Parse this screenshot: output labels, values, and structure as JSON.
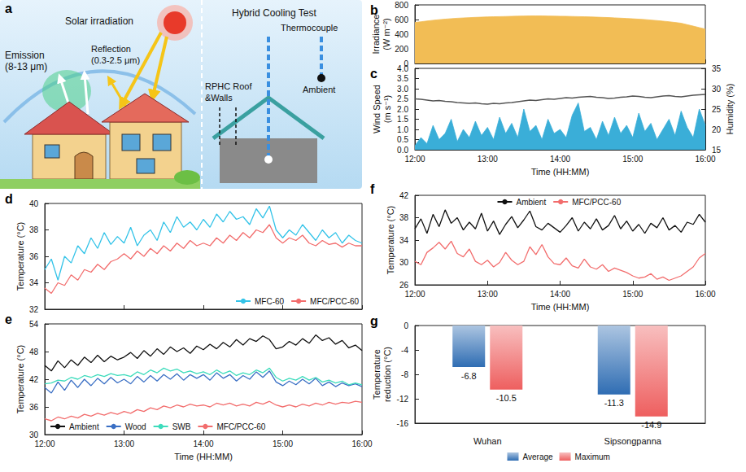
{
  "diagram": {
    "panel": "a",
    "solar": "Solar irradiation",
    "emission_lines": [
      "Emission",
      "(8-13 μm)"
    ],
    "reflection_lines": [
      "Reflection",
      "(0.3-2.5 μm)"
    ],
    "test_title": "Hybrid Cooling Test",
    "thermocouple": "Thermocouple",
    "sample_lines": [
      "RPHC Roof",
      "&Walls"
    ],
    "ambient": "Ambient"
  },
  "chart_data": [
    {
      "panel": "b",
      "type": "area",
      "ylabel": "Irradiance (W m⁻²)",
      "ylim": [
        0,
        800
      ],
      "yticks": [
        0,
        200,
        400,
        600,
        800
      ],
      "grid": false,
      "tick_labels": "y",
      "color": "#f2bd55",
      "categories": [
        "12:00",
        null,
        null,
        null,
        null,
        null,
        null,
        null,
        null,
        null,
        null,
        null,
        "13:00",
        null,
        null,
        null,
        null,
        null,
        null,
        null,
        null,
        null,
        null,
        null,
        "14:00",
        null,
        null,
        null,
        null,
        null,
        null,
        null,
        null,
        null,
        null,
        null,
        "15:00",
        null,
        null,
        null,
        null,
        null,
        null,
        null,
        null,
        null,
        null,
        null,
        "16:00"
      ],
      "values": [
        560,
        570,
        580,
        590,
        598,
        605,
        612,
        618,
        622,
        626,
        630,
        633,
        636,
        638,
        640,
        642,
        644,
        646,
        648,
        650,
        650,
        650,
        648,
        646,
        645,
        644,
        642,
        640,
        638,
        636,
        633,
        630,
        627,
        623,
        619,
        615,
        610,
        605,
        600,
        593,
        586,
        578,
        570,
        560,
        550,
        530,
        510,
        490,
        470
      ]
    },
    {
      "panel": "c",
      "type": "line",
      "xlabel": "Time (HH:MM)",
      "ylabel": "Wind Speed (m s⁻¹)",
      "y2label": "Humidity (%)",
      "ylim": [
        0,
        4
      ],
      "yticks": [
        {
          "value": 0,
          "label": "0.0"
        },
        0.5,
        {
          "value": 1,
          "label": "1.0"
        },
        1.5,
        {
          "value": 2,
          "label": "2.0"
        },
        2.5,
        {
          "value": 3,
          "label": "3.0"
        },
        3.5,
        {
          "value": 4,
          "label": "4.0"
        }
      ],
      "y2lim": [
        15,
        35
      ],
      "y2ticks": [
        15,
        20,
        25,
        30,
        35
      ],
      "grid": false,
      "categories": [
        "12:00",
        null,
        null,
        null,
        null,
        null,
        null,
        null,
        null,
        null,
        null,
        null,
        "13:00",
        null,
        null,
        null,
        null,
        null,
        null,
        null,
        null,
        null,
        null,
        null,
        "14:00",
        null,
        null,
        null,
        null,
        null,
        null,
        null,
        null,
        null,
        null,
        null,
        "15:00",
        null,
        null,
        null,
        null,
        null,
        null,
        null,
        null,
        null,
        null,
        null,
        "16:00"
      ],
      "series": [
        {
          "type": "area",
          "color": "#3aaed8",
          "values": [
            0.2,
            0.6,
            0.3,
            1.2,
            0.5,
            0.8,
            1.5,
            0.4,
            1.0,
            0.6,
            1.4,
            0.7,
            1.1,
            0.5,
            1.6,
            0.8,
            1.3,
            0.6,
            2.0,
            0.9,
            1.2,
            0.5,
            1.5,
            0.8,
            1.0,
            0.6,
            1.7,
            2.3,
            0.9,
            1.1,
            0.5,
            1.4,
            0.7,
            1.6,
            0.8,
            1.2,
            0.6,
            1.8,
            0.9,
            1.3,
            0.5,
            1.0,
            1.5,
            0.7,
            1.9,
            1.1,
            0.6,
            2.0,
            1.2
          ]
        },
        {
          "type": "line",
          "color": "#555555",
          "axis": "y2",
          "values": [
            27.5,
            27.4,
            27.2,
            27.0,
            27.1,
            26.9,
            26.8,
            26.6,
            26.5,
            26.4,
            26.5,
            26.3,
            26.2,
            26.4,
            26.3,
            26.5,
            26.6,
            26.8,
            27.0,
            27.2,
            27.1,
            27.3,
            27.5,
            27.4,
            27.6,
            27.8,
            27.7,
            27.9,
            28.0,
            28.1,
            27.9,
            27.8,
            27.6,
            27.7,
            27.9,
            28.0,
            28.2,
            28.1,
            27.9,
            27.8,
            28.0,
            28.2,
            28.3,
            28.1,
            28.0,
            28.2,
            28.4,
            28.5,
            28.6
          ]
        }
      ]
    },
    {
      "panel": "d",
      "type": "line",
      "ylabel": "Temperature (°C)",
      "ylim": [
        32,
        40
      ],
      "yticks": [
        32,
        34,
        36,
        38,
        40
      ],
      "grid": false,
      "tick_labels": "y",
      "legend": "lower right",
      "categories": [
        "12:00",
        null,
        null,
        null,
        null,
        null,
        null,
        null,
        null,
        null,
        null,
        null,
        "13:00",
        null,
        null,
        null,
        null,
        null,
        null,
        null,
        null,
        null,
        null,
        null,
        "14:00",
        null,
        null,
        null,
        null,
        null,
        null,
        null,
        null,
        null,
        null,
        null,
        "15:00",
        null,
        null,
        null,
        null,
        null,
        null,
        null,
        null,
        null,
        null,
        null,
        "16:00"
      ],
      "series": [
        {
          "name": "MFC-60",
          "color": "#33c3e8",
          "values": [
            35.0,
            35.8,
            34.2,
            36.0,
            35.5,
            36.8,
            36.2,
            37.4,
            36.6,
            37.8,
            36.9,
            37.5,
            37.0,
            38.2,
            36.8,
            37.6,
            38.0,
            37.2,
            38.6,
            37.8,
            39.0,
            38.2,
            38.6,
            38.0,
            38.8,
            38.2,
            39.2,
            38.6,
            39.4,
            38.8,
            39.0,
            38.4,
            39.6,
            38.9,
            39.8,
            38.0,
            37.4,
            38.0,
            37.6,
            38.4,
            37.8,
            37.2,
            38.0,
            37.4,
            37.8,
            37.0,
            37.6,
            37.2,
            37.0
          ]
        },
        {
          "name": "MFC/PCC-60",
          "color": "#f26d6d",
          "values": [
            33.6,
            33.2,
            34.0,
            33.8,
            34.6,
            34.2,
            35.0,
            34.8,
            35.4,
            35.0,
            35.6,
            35.8,
            36.2,
            35.8,
            36.4,
            36.0,
            36.6,
            36.2,
            36.8,
            36.4,
            37.0,
            36.6,
            37.2,
            36.8,
            37.0,
            36.8,
            37.4,
            37.0,
            37.6,
            37.2,
            37.8,
            37.4,
            38.0,
            37.8,
            38.4,
            37.4,
            37.0,
            37.4,
            37.2,
            37.6,
            37.0,
            36.8,
            37.2,
            36.9,
            37.0,
            36.7,
            37.0,
            36.8,
            36.8
          ]
        }
      ]
    },
    {
      "panel": "e",
      "type": "line",
      "xlabel": "Time (HH:MM)",
      "ylabel": "Temperature (°C)",
      "ylim": [
        30,
        54
      ],
      "yticks": [
        30,
        36,
        42,
        48,
        54
      ],
      "grid": false,
      "legend": "lower left",
      "categories": [
        "12:00",
        null,
        null,
        null,
        null,
        null,
        null,
        null,
        null,
        null,
        null,
        null,
        "13:00",
        null,
        null,
        null,
        null,
        null,
        null,
        null,
        null,
        null,
        null,
        null,
        "14:00",
        null,
        null,
        null,
        null,
        null,
        null,
        null,
        null,
        null,
        null,
        null,
        "15:00",
        null,
        null,
        null,
        null,
        null,
        null,
        null,
        null,
        null,
        null,
        null,
        "16:00"
      ],
      "series": [
        {
          "name": "Ambient",
          "color": "#111111",
          "values": [
            45.0,
            43.8,
            46.0,
            44.5,
            46.2,
            45.0,
            46.8,
            45.6,
            47.2,
            45.8,
            47.0,
            46.2,
            46.8,
            47.8,
            46.5,
            48.2,
            47.0,
            48.6,
            47.4,
            49.0,
            48.0,
            48.8,
            47.6,
            49.2,
            48.4,
            49.6,
            48.6,
            50.0,
            49.0,
            50.6,
            49.4,
            50.8,
            50.2,
            51.4,
            50.6,
            48.6,
            49.0,
            50.2,
            49.4,
            50.8,
            49.8,
            51.6,
            50.4,
            51.0,
            49.6,
            50.4,
            48.8,
            49.4,
            48.2
          ]
        },
        {
          "name": "Wood",
          "color": "#3a6fc4",
          "values": [
            40.2,
            39.0,
            41.4,
            39.6,
            41.8,
            40.2,
            42.0,
            40.6,
            42.2,
            41.0,
            42.4,
            41.2,
            42.0,
            41.0,
            42.6,
            41.4,
            42.8,
            41.6,
            43.0,
            42.0,
            43.2,
            41.8,
            43.0,
            42.2,
            43.0,
            41.8,
            43.4,
            42.2,
            43.0,
            41.6,
            42.8,
            42.0,
            43.6,
            42.4,
            43.8,
            41.4,
            40.6,
            41.6,
            40.8,
            42.0,
            41.0,
            42.2,
            40.6,
            41.4,
            40.4,
            41.2,
            40.6,
            41.0,
            40.4
          ]
        },
        {
          "name": "SWB",
          "color": "#3ddcbc",
          "values": [
            41.0,
            41.2,
            41.8,
            41.6,
            42.4,
            42.0,
            42.8,
            42.4,
            43.0,
            42.6,
            43.2,
            42.8,
            43.0,
            42.6,
            43.6,
            43.0,
            44.0,
            43.4,
            44.4,
            43.8,
            44.2,
            43.4,
            43.8,
            43.2,
            43.6,
            43.0,
            44.0,
            43.2,
            43.8,
            42.8,
            43.4,
            43.0,
            44.0,
            43.4,
            44.4,
            42.4,
            41.6,
            42.2,
            41.8,
            42.6,
            41.8,
            42.4,
            41.4,
            41.8,
            41.2,
            41.6,
            40.8,
            41.2,
            40.8
          ]
        },
        {
          "name": "MFC/PCC-60",
          "color": "#f26d6d",
          "values": [
            33.4,
            33.0,
            33.8,
            33.4,
            34.0,
            33.6,
            34.4,
            34.0,
            34.6,
            34.2,
            34.8,
            34.4,
            35.0,
            34.6,
            35.4,
            35.0,
            35.8,
            35.4,
            36.2,
            35.8,
            36.4,
            36.0,
            36.6,
            36.2,
            36.4,
            36.0,
            36.8,
            36.4,
            36.8,
            36.2,
            36.6,
            36.2,
            37.0,
            36.6,
            37.2,
            36.4,
            36.0,
            36.4,
            36.0,
            36.6,
            36.2,
            36.8,
            36.4,
            37.0,
            36.6,
            37.0,
            36.8,
            37.2,
            37.0
          ]
        }
      ]
    },
    {
      "panel": "f",
      "type": "line",
      "xlabel": "Time (HH:MM)",
      "ylabel": "Temperature (°C)",
      "ylim": [
        26,
        42
      ],
      "yticks": [
        26,
        30,
        34,
        38,
        42
      ],
      "grid": false,
      "legend": "top",
      "categories": [
        "12:00",
        null,
        null,
        null,
        null,
        null,
        null,
        null,
        null,
        null,
        null,
        null,
        "13:00",
        null,
        null,
        null,
        null,
        null,
        null,
        null,
        null,
        null,
        null,
        null,
        "14:00",
        null,
        null,
        null,
        null,
        null,
        null,
        null,
        null,
        null,
        null,
        null,
        "15:00",
        null,
        null,
        null,
        null,
        null,
        null,
        null,
        null,
        null,
        null,
        null,
        "16:00"
      ],
      "series": [
        {
          "name": "Ambient",
          "color": "#111111",
          "values": [
            36.0,
            37.8,
            35.2,
            38.6,
            36.4,
            39.4,
            37.0,
            38.0,
            35.8,
            37.2,
            36.0,
            38.8,
            35.6,
            37.4,
            35.0,
            36.8,
            38.2,
            36.2,
            37.6,
            39.2,
            36.4,
            35.8,
            37.0,
            36.2,
            35.4,
            36.6,
            38.0,
            35.6,
            37.2,
            36.0,
            37.8,
            35.8,
            36.6,
            38.4,
            36.0,
            37.4,
            35.6,
            36.8,
            35.2,
            37.0,
            36.2,
            38.0,
            35.8,
            36.6,
            35.4,
            37.2,
            36.8,
            38.6,
            37.2
          ]
        },
        {
          "name": "MFC/PCC-60",
          "color": "#f26d6d",
          "values": [
            30.2,
            29.6,
            31.8,
            32.6,
            33.6,
            32.4,
            33.8,
            31.6,
            31.0,
            32.4,
            30.2,
            29.6,
            30.4,
            29.2,
            30.0,
            31.8,
            30.4,
            29.6,
            30.2,
            32.8,
            31.4,
            33.2,
            31.0,
            29.8,
            29.6,
            30.8,
            29.4,
            29.0,
            30.6,
            29.2,
            28.8,
            29.6,
            28.4,
            29.0,
            28.6,
            28.2,
            27.6,
            27.2,
            27.4,
            28.0,
            27.0,
            27.4,
            26.8,
            27.2,
            27.6,
            28.4,
            29.2,
            30.8,
            31.6
          ]
        }
      ]
    },
    {
      "panel": "g",
      "type": "bar",
      "categories": [
        "Wuhan",
        "Sipsongpanna"
      ],
      "ylabel": "Temperature reduction (°C)",
      "ylim": [
        -16,
        0
      ],
      "yticks": [
        -16,
        -12,
        -8,
        -4,
        0
      ],
      "grid": false,
      "data_labels": true,
      "legend": "bottom",
      "series": [
        {
          "name": "Average",
          "color": "#2f6db3",
          "values": [
            -6.8,
            -11.3
          ]
        },
        {
          "name": "Maximum",
          "color": "#ee5f5f",
          "values": [
            -10.5,
            -14.9
          ]
        }
      ]
    }
  ]
}
